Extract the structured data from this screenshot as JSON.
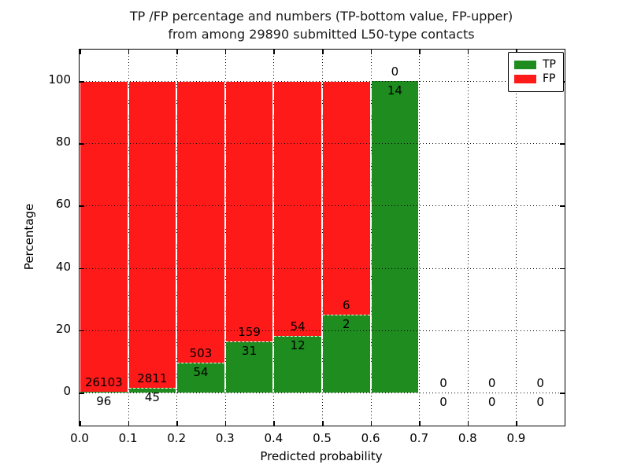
{
  "figure": {
    "title_line1": "TP /FP percentage and numbers (TP-bottom value, FP-upper)",
    "title_line2": "from among 29890 submitted L50-type contacts"
  },
  "chart_data": {
    "type": "bar",
    "stacked": true,
    "normalized_to_percent": true,
    "title": "TP /FP percentage and numbers (TP-bottom value, FP-upper)\nfrom among 29890 submitted L50-type contacts",
    "xlabel": "Predicted probability",
    "ylabel": "Percentage",
    "total_submitted_contacts": 29890,
    "bin_width": 0.1,
    "bin_starts": [
      0.0,
      0.1,
      0.2,
      0.3,
      0.4,
      0.5,
      0.6,
      0.7,
      0.8,
      0.9
    ],
    "series": [
      {
        "name": "TP",
        "color": "#1e8c1e",
        "values": [
          96,
          45,
          54,
          31,
          12,
          2,
          14,
          0,
          0,
          0
        ]
      },
      {
        "name": "FP",
        "color": "#ff1a1a",
        "values": [
          26103,
          2811,
          503,
          159,
          54,
          6,
          0,
          0,
          0,
          0
        ]
      }
    ],
    "x_ticks": [
      "0.0",
      "0.1",
      "0.2",
      "0.3",
      "0.4",
      "0.5",
      "0.6",
      "0.7",
      "0.8",
      "0.9"
    ],
    "y_ticks": [
      0,
      20,
      40,
      60,
      80,
      100
    ],
    "xlim": [
      0,
      1
    ],
    "ylim": [
      -10,
      110
    ],
    "grid": true,
    "grid_style": "dotted",
    "bar_edge_color": "#ffffff",
    "legend": {
      "position": "upper right",
      "entries": [
        {
          "label": "TP",
          "color": "#1e8c1e"
        },
        {
          "label": "FP",
          "color": "#ff1a1a"
        }
      ]
    }
  }
}
